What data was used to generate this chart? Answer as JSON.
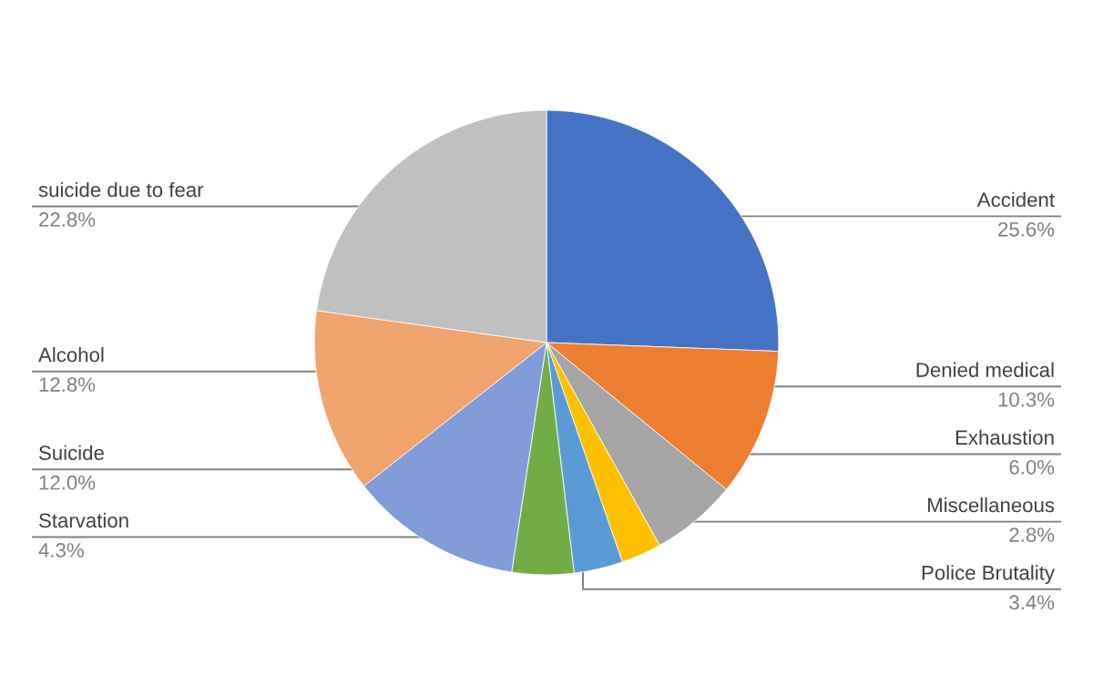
{
  "chart_data": {
    "type": "pie",
    "categories": [
      "Accident",
      "Denied medical",
      "Exhaustion",
      "Miscellaneous",
      "Police Brutality",
      "Starvation",
      "Suicide",
      "Alcohol",
      "suicide due to fear"
    ],
    "values": [
      25.6,
      10.3,
      6.0,
      2.8,
      3.4,
      4.3,
      12.0,
      12.8,
      22.8
    ],
    "value_labels": [
      "25.6%",
      "10.3%",
      "6.0%",
      "2.8%",
      "3.4%",
      "4.3%",
      "12.0%",
      "12.8%",
      "22.8%"
    ],
    "colors": [
      "#4472c4",
      "#ed7d31",
      "#a5a5a5",
      "#ffc000",
      "#5b9bd5",
      "#70ad47",
      "#7f9bd8",
      "#f1a46d",
      "#c0c0c0"
    ],
    "legend": false
  }
}
